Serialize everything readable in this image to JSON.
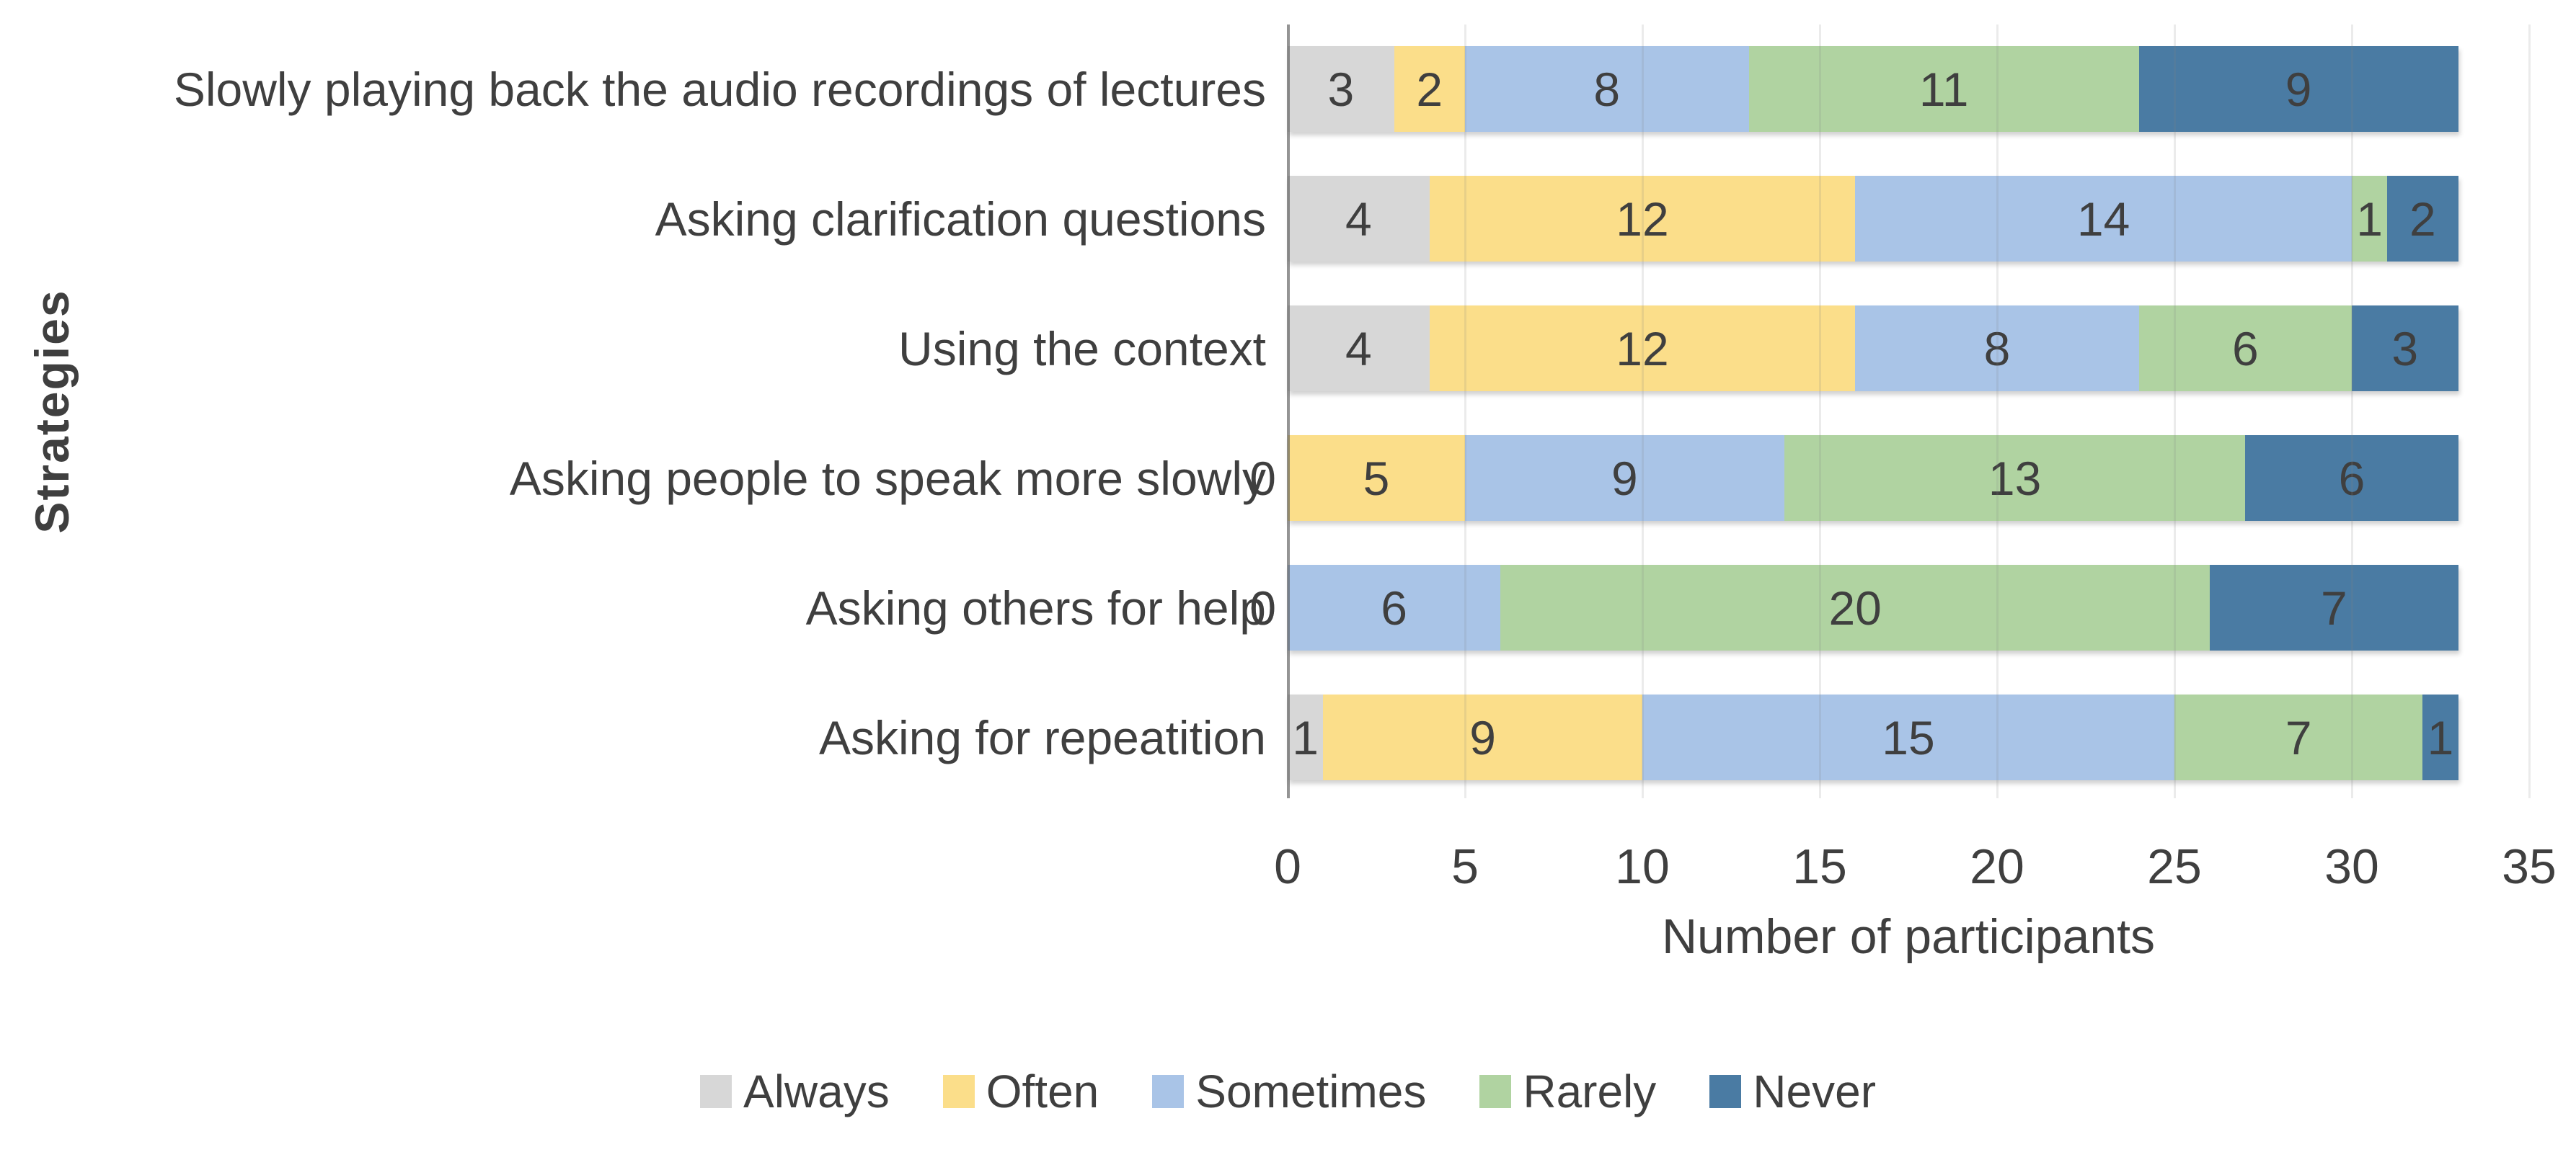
{
  "chart_data": {
    "type": "bar",
    "orientation": "horizontal",
    "stacked": true,
    "xlabel": "Number of participants",
    "ylabel": "Strategies",
    "xlim": [
      0,
      35
    ],
    "xticks": [
      0,
      5,
      10,
      15,
      20,
      25,
      30,
      35
    ],
    "grid": true,
    "legend_position": "bottom",
    "data_labels": true,
    "categories": [
      "Slowly playing back the audio recordings of lectures",
      "Asking clarification questions",
      "Using the context",
      "Asking people to speak more slowly",
      "Asking others for help",
      "Asking for repeatition"
    ],
    "series": [
      {
        "name": "Always",
        "color": "#D7D7D7",
        "values": [
          3,
          4,
          4,
          0,
          0,
          1
        ]
      },
      {
        "name": "Often",
        "color": "#FBDE8A",
        "values": [
          2,
          12,
          12,
          5,
          0,
          9
        ]
      },
      {
        "name": "Sometimes",
        "color": "#A9C4E7",
        "values": [
          8,
          14,
          8,
          9,
          6,
          15
        ]
      },
      {
        "name": "Rarely",
        "color": "#B0D3A1",
        "values": [
          11,
          1,
          6,
          13,
          20,
          7
        ]
      },
      {
        "name": "Never",
        "color": "#4A7BA3",
        "values": [
          9,
          2,
          3,
          6,
          7,
          1
        ]
      }
    ],
    "totals_per_category": [
      33,
      33,
      33,
      33,
      33,
      33
    ],
    "text_color": "#3F3F3F",
    "gridline_color": "#E2E2E2",
    "axis_line_color": "#8C8C8C"
  }
}
